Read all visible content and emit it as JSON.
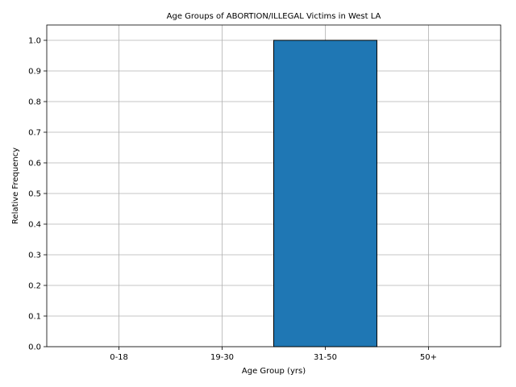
{
  "chart_data": {
    "type": "bar",
    "title": "Age Groups of ABORTION/ILLEGAL Victims in West LA",
    "xlabel": "Age Group (yrs)",
    "ylabel": "Relative Frequency",
    "categories": [
      "0-18",
      "19-30",
      "31-50",
      "50+"
    ],
    "values": [
      0.0,
      0.0,
      1.0,
      0.0
    ],
    "ylim": [
      0.0,
      1.05
    ],
    "yticks": [
      "0.0",
      "0.1",
      "0.2",
      "0.3",
      "0.4",
      "0.5",
      "0.6",
      "0.7",
      "0.8",
      "0.9",
      "1.0"
    ],
    "grid": true,
    "bar_color": "#1f77b4",
    "edge_color": "#000000"
  }
}
